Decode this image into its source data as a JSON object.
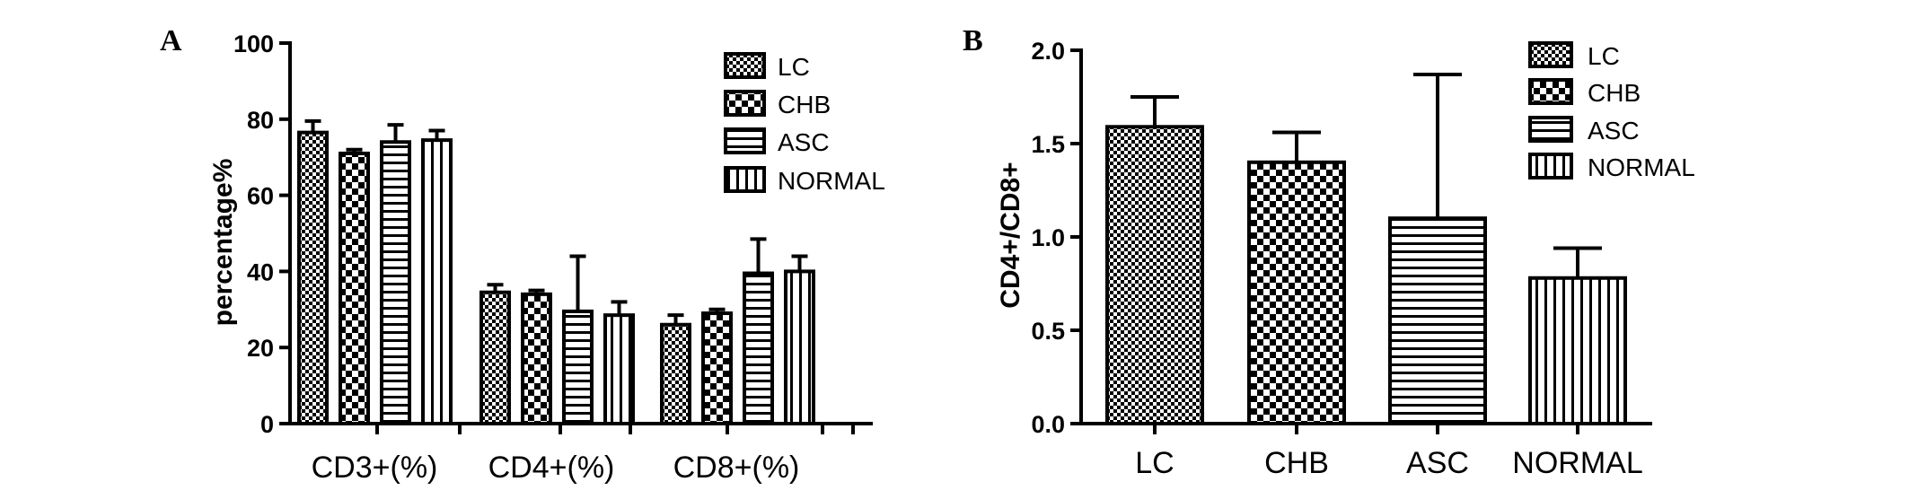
{
  "chart_data": [
    {
      "panel": "A",
      "type": "bar",
      "ylabel": "percentage%",
      "xlabel": "",
      "ylim": [
        0,
        100
      ],
      "yticks": [
        "0",
        "20",
        "40",
        "60",
        "80",
        "100"
      ],
      "categories": [
        "CD3+(%)",
        "CD4+(%)",
        "CD8+(%)"
      ],
      "legend_placement": "top-right",
      "series": [
        {
          "name": "LC",
          "pattern": "fine-check",
          "values": [
            76.5,
            34.5,
            26.0
          ],
          "errors": [
            3.0,
            2.0,
            2.5
          ]
        },
        {
          "name": "CHB",
          "pattern": "coarse-check",
          "values": [
            71.0,
            34.0,
            29.0
          ],
          "errors": [
            1.0,
            1.0,
            1.0
          ]
        },
        {
          "name": "ASC",
          "pattern": "horizontal-lines",
          "values": [
            74.0,
            29.5,
            39.5
          ],
          "errors": [
            4.5,
            14.5,
            9.0
          ]
        },
        {
          "name": "NORMAL",
          "pattern": "vertical-lines",
          "values": [
            74.5,
            28.5,
            40.0
          ],
          "errors": [
            2.5,
            3.5,
            4.0
          ]
        }
      ]
    },
    {
      "panel": "B",
      "type": "bar",
      "ylabel": "CD4+/CD8+",
      "xlabel": "",
      "ylim": [
        0,
        2.0
      ],
      "yticks": [
        "0.0",
        "0.5",
        "1.0",
        "1.5",
        "2.0"
      ],
      "categories": [
        "LC",
        "CHB",
        "ASC",
        "NORMAL"
      ],
      "legend_placement": "top-right",
      "legend": [
        "LC",
        "CHB",
        "ASC",
        "NORMAL"
      ],
      "patterns": [
        "fine-check",
        "coarse-check",
        "horizontal-lines",
        "vertical-lines"
      ],
      "values": [
        1.59,
        1.4,
        1.1,
        0.78
      ],
      "errors": [
        0.16,
        0.16,
        0.77,
        0.16
      ]
    }
  ]
}
